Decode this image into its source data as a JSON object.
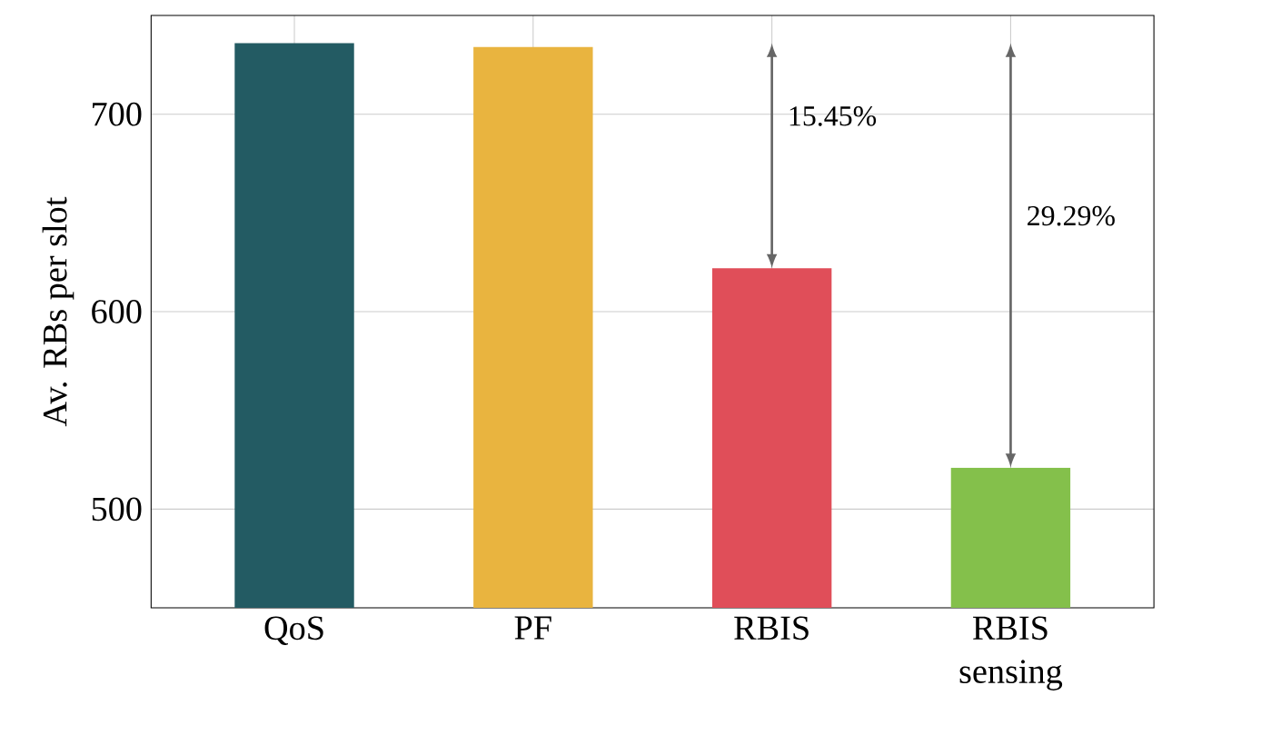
{
  "chart_data": {
    "type": "bar",
    "ylabel": "Av. RBs per slot",
    "categories": [
      "QoS",
      "PF",
      "RBIS",
      "RBIS sensing"
    ],
    "values": [
      736,
      734,
      622,
      521
    ],
    "colors": [
      "#235b63",
      "#e9b43f",
      "#e04e59",
      "#84c04b"
    ],
    "ylim": [
      450,
      750
    ],
    "yticks": [
      500,
      600,
      700
    ],
    "grid": true,
    "annotations": [
      "15.45%",
      "29.29%"
    ]
  }
}
